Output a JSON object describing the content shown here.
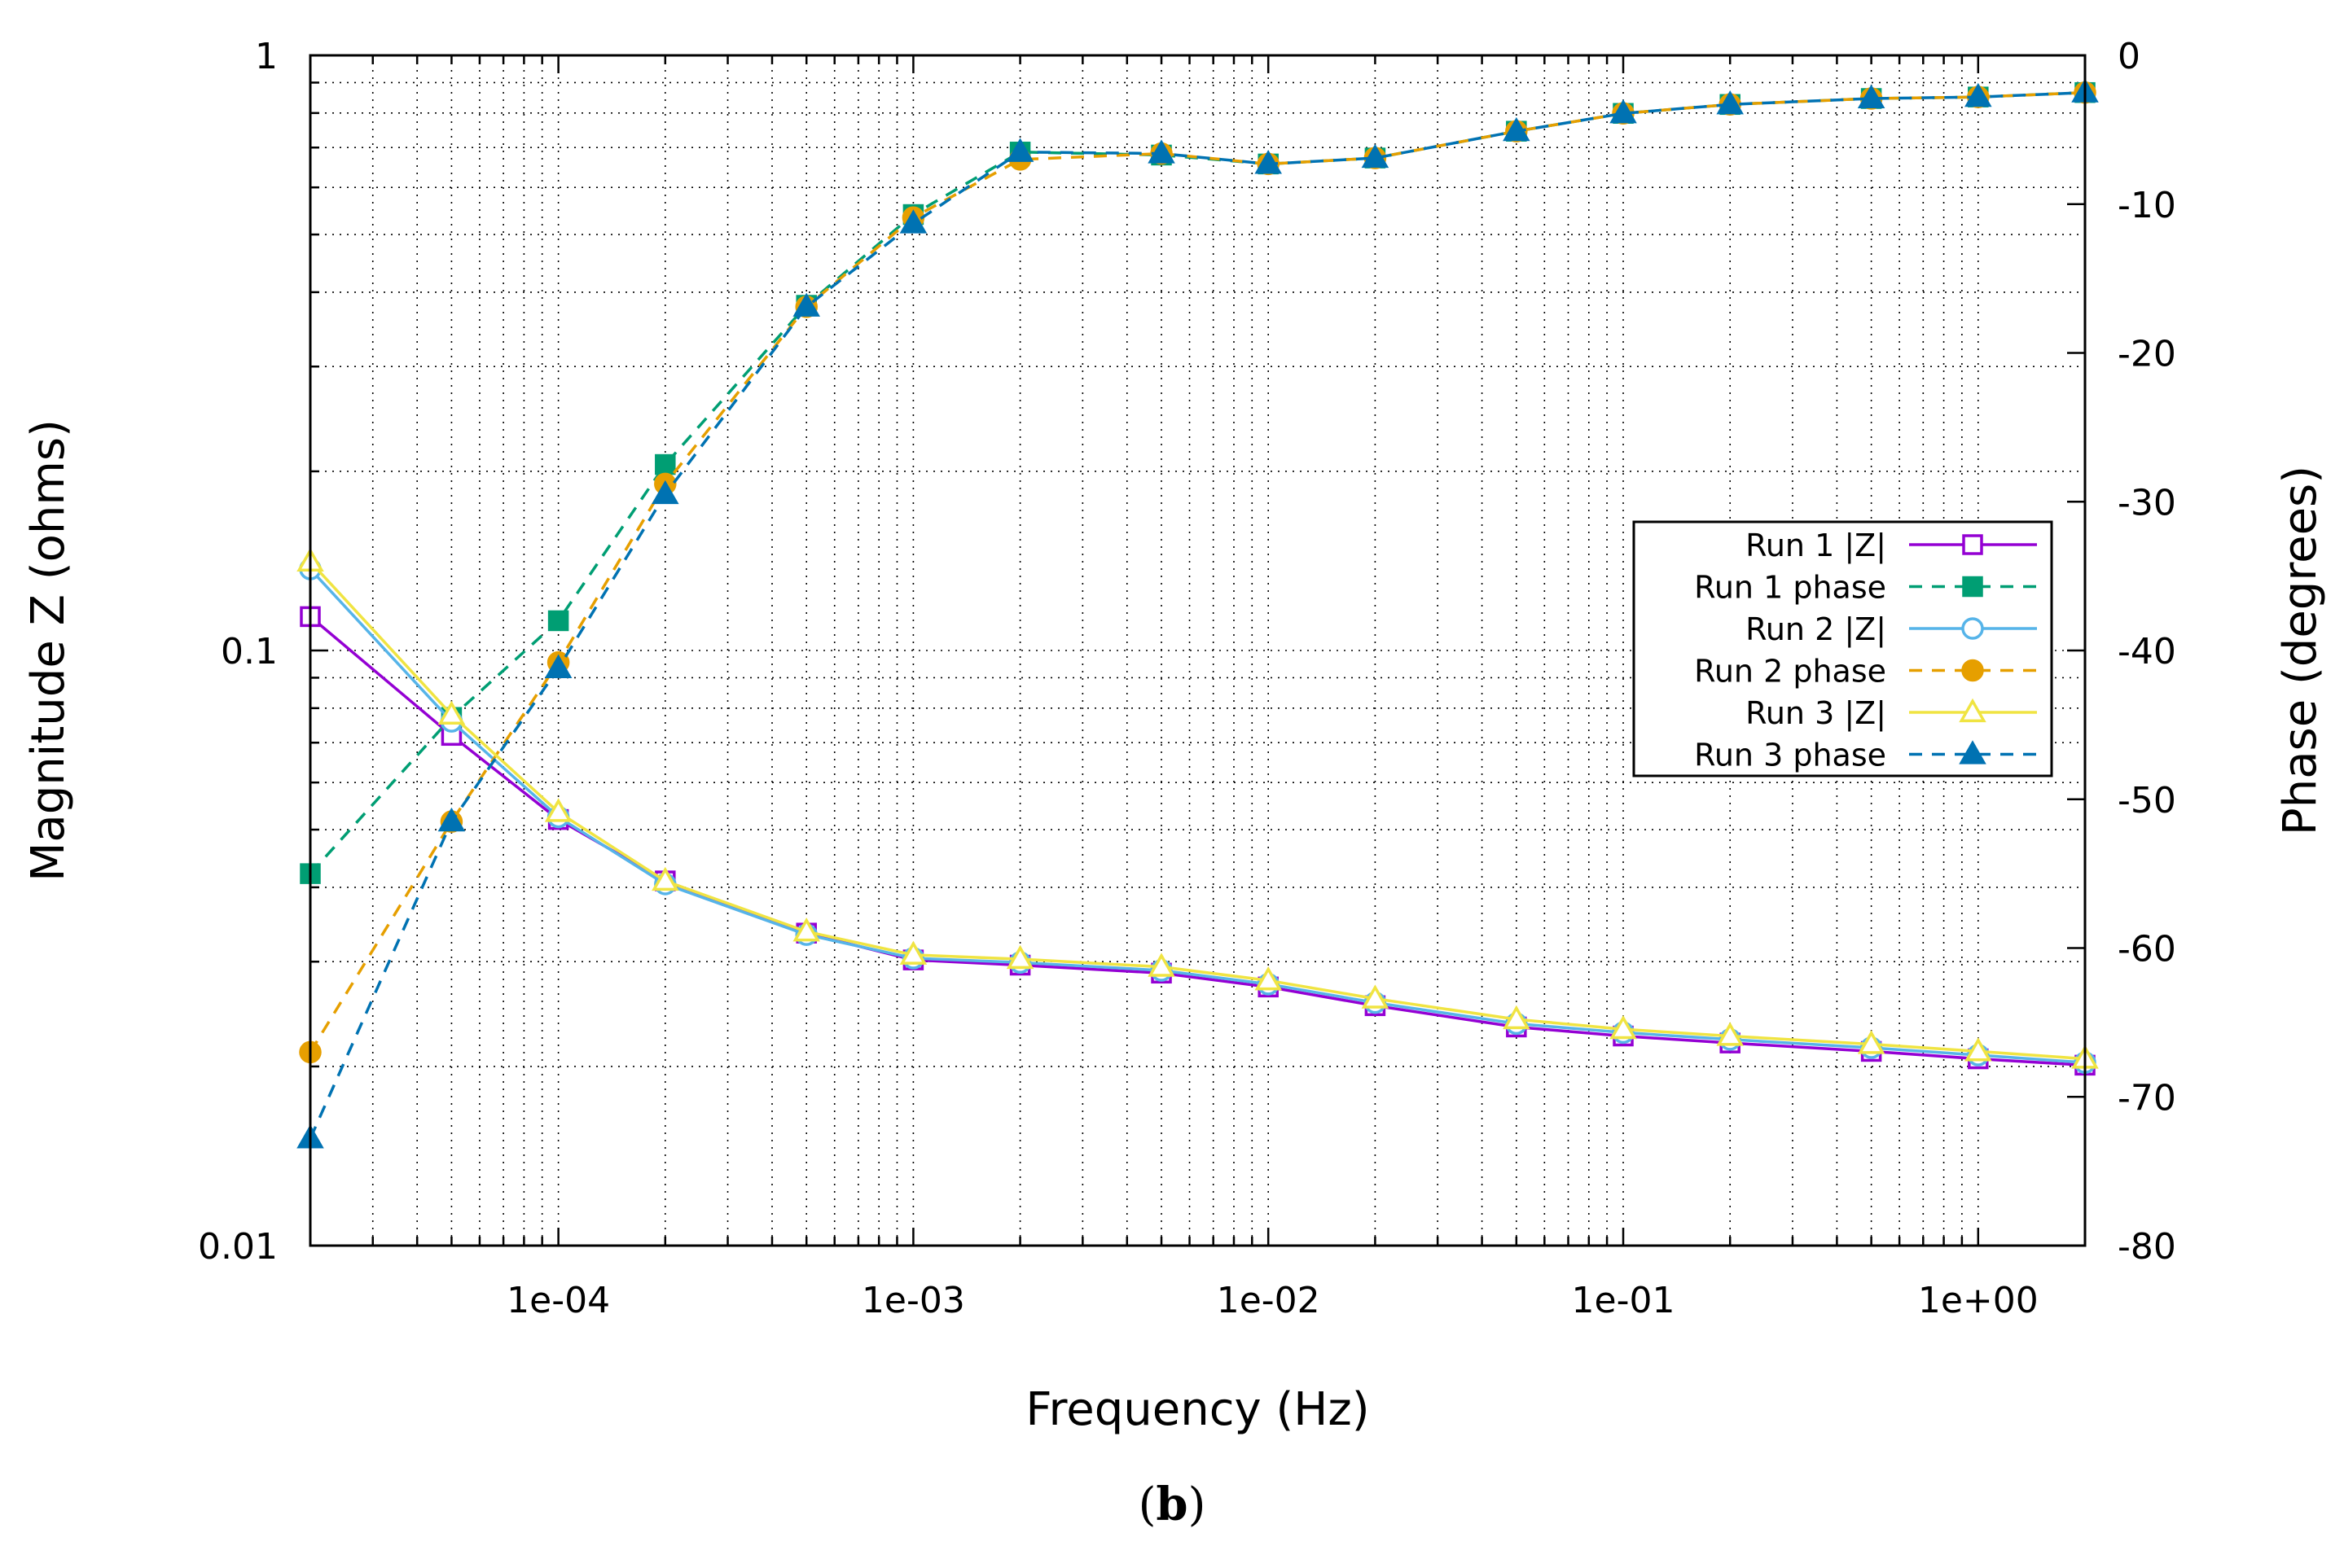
{
  "caption": {
    "open": "(",
    "letter": "b",
    "close": ")"
  },
  "chart_data": {
    "type": "line",
    "xscale": "log",
    "xlim": [
      2e-05,
      2
    ],
    "xlabel": "Frequency (Hz)",
    "xticks": [
      0.0001,
      0.001,
      0.01,
      0.1,
      1
    ],
    "xtick_labels": [
      "1e-04",
      "1e-03",
      "1e-02",
      "1e-01",
      "1e+00"
    ],
    "y_left": {
      "label": "Magnitude Z (ohms)",
      "scale": "log",
      "lim": [
        0.01,
        1
      ],
      "ticks": [
        0.01,
        0.1,
        1
      ],
      "tick_labels": [
        "0.01",
        "0.1",
        "1"
      ]
    },
    "y_right": {
      "label": "Phase (degrees)",
      "scale": "linear",
      "lim": [
        -80,
        0
      ],
      "ticks": [
        -80,
        -70,
        -60,
        -50,
        -40,
        -30,
        -20,
        -10,
        0
      ],
      "tick_labels": [
        "-80",
        "-70",
        "-60",
        "-50",
        "-40",
        "-30",
        "-20",
        "-10",
        "0"
      ]
    },
    "grid": true,
    "legend_position": "center-right",
    "x": [
      2e-05,
      5e-05,
      0.0001,
      0.0002,
      0.0005,
      0.001,
      0.002,
      0.005,
      0.01,
      0.02,
      0.05,
      0.1,
      0.2,
      0.5,
      1,
      2
    ],
    "series": [
      {
        "name": "Run 1 |Z|",
        "axis": "left",
        "color": "#9400d3",
        "dash": "solid",
        "marker": "square-open",
        "values": [
          0.114,
          0.072,
          0.052,
          0.041,
          0.0335,
          0.0302,
          0.0296,
          0.0287,
          0.0272,
          0.0253,
          0.0233,
          0.0225,
          0.0219,
          0.0212,
          0.0206,
          0.0201
        ]
      },
      {
        "name": "Run 1 phase",
        "axis": "right",
        "color": "#009e73",
        "dash": "dashed",
        "marker": "square-filled",
        "values": [
          -55,
          -44.5,
          -38,
          -27.5,
          -16.8,
          -10.7,
          -6.5,
          -6.7,
          -7.3,
          -6.9,
          -5.1,
          -3.9,
          -3.3,
          -2.9,
          -2.8,
          -2.5
        ]
      },
      {
        "name": "Run 2 |Z|",
        "axis": "left",
        "color": "#56b4e9",
        "dash": "solid",
        "marker": "circle-open",
        "values": [
          0.137,
          0.076,
          0.0525,
          0.0405,
          0.0333,
          0.0304,
          0.0299,
          0.029,
          0.0275,
          0.0256,
          0.0236,
          0.0228,
          0.0222,
          0.0215,
          0.0209,
          0.0203
        ]
      },
      {
        "name": "Run 2 phase",
        "axis": "right",
        "color": "#e69f00",
        "dash": "dashed",
        "marker": "circle-filled",
        "values": [
          -67,
          -51.5,
          -40.8,
          -28.8,
          -16.9,
          -10.9,
          -7,
          -6.6,
          -7.3,
          -6.9,
          -5.1,
          -3.9,
          -3.3,
          -2.9,
          -2.8,
          -2.5
        ]
      },
      {
        "name": "Run 3 |Z|",
        "axis": "left",
        "color": "#f0e442",
        "dash": "solid",
        "marker": "triangle-open",
        "values": [
          0.141,
          0.078,
          0.0535,
          0.041,
          0.0337,
          0.0308,
          0.0303,
          0.0294,
          0.0279,
          0.026,
          0.024,
          0.0231,
          0.0225,
          0.0218,
          0.0212,
          0.0206
        ]
      },
      {
        "name": "Run 3 phase",
        "axis": "right",
        "color": "#0072b2",
        "dash": "dashed",
        "marker": "triangle-filled",
        "values": [
          -72.8,
          -51.5,
          -41.2,
          -29.5,
          -16.9,
          -11.3,
          -6.5,
          -6.6,
          -7.3,
          -6.9,
          -5.1,
          -3.9,
          -3.3,
          -2.9,
          -2.8,
          -2.5
        ]
      }
    ]
  }
}
